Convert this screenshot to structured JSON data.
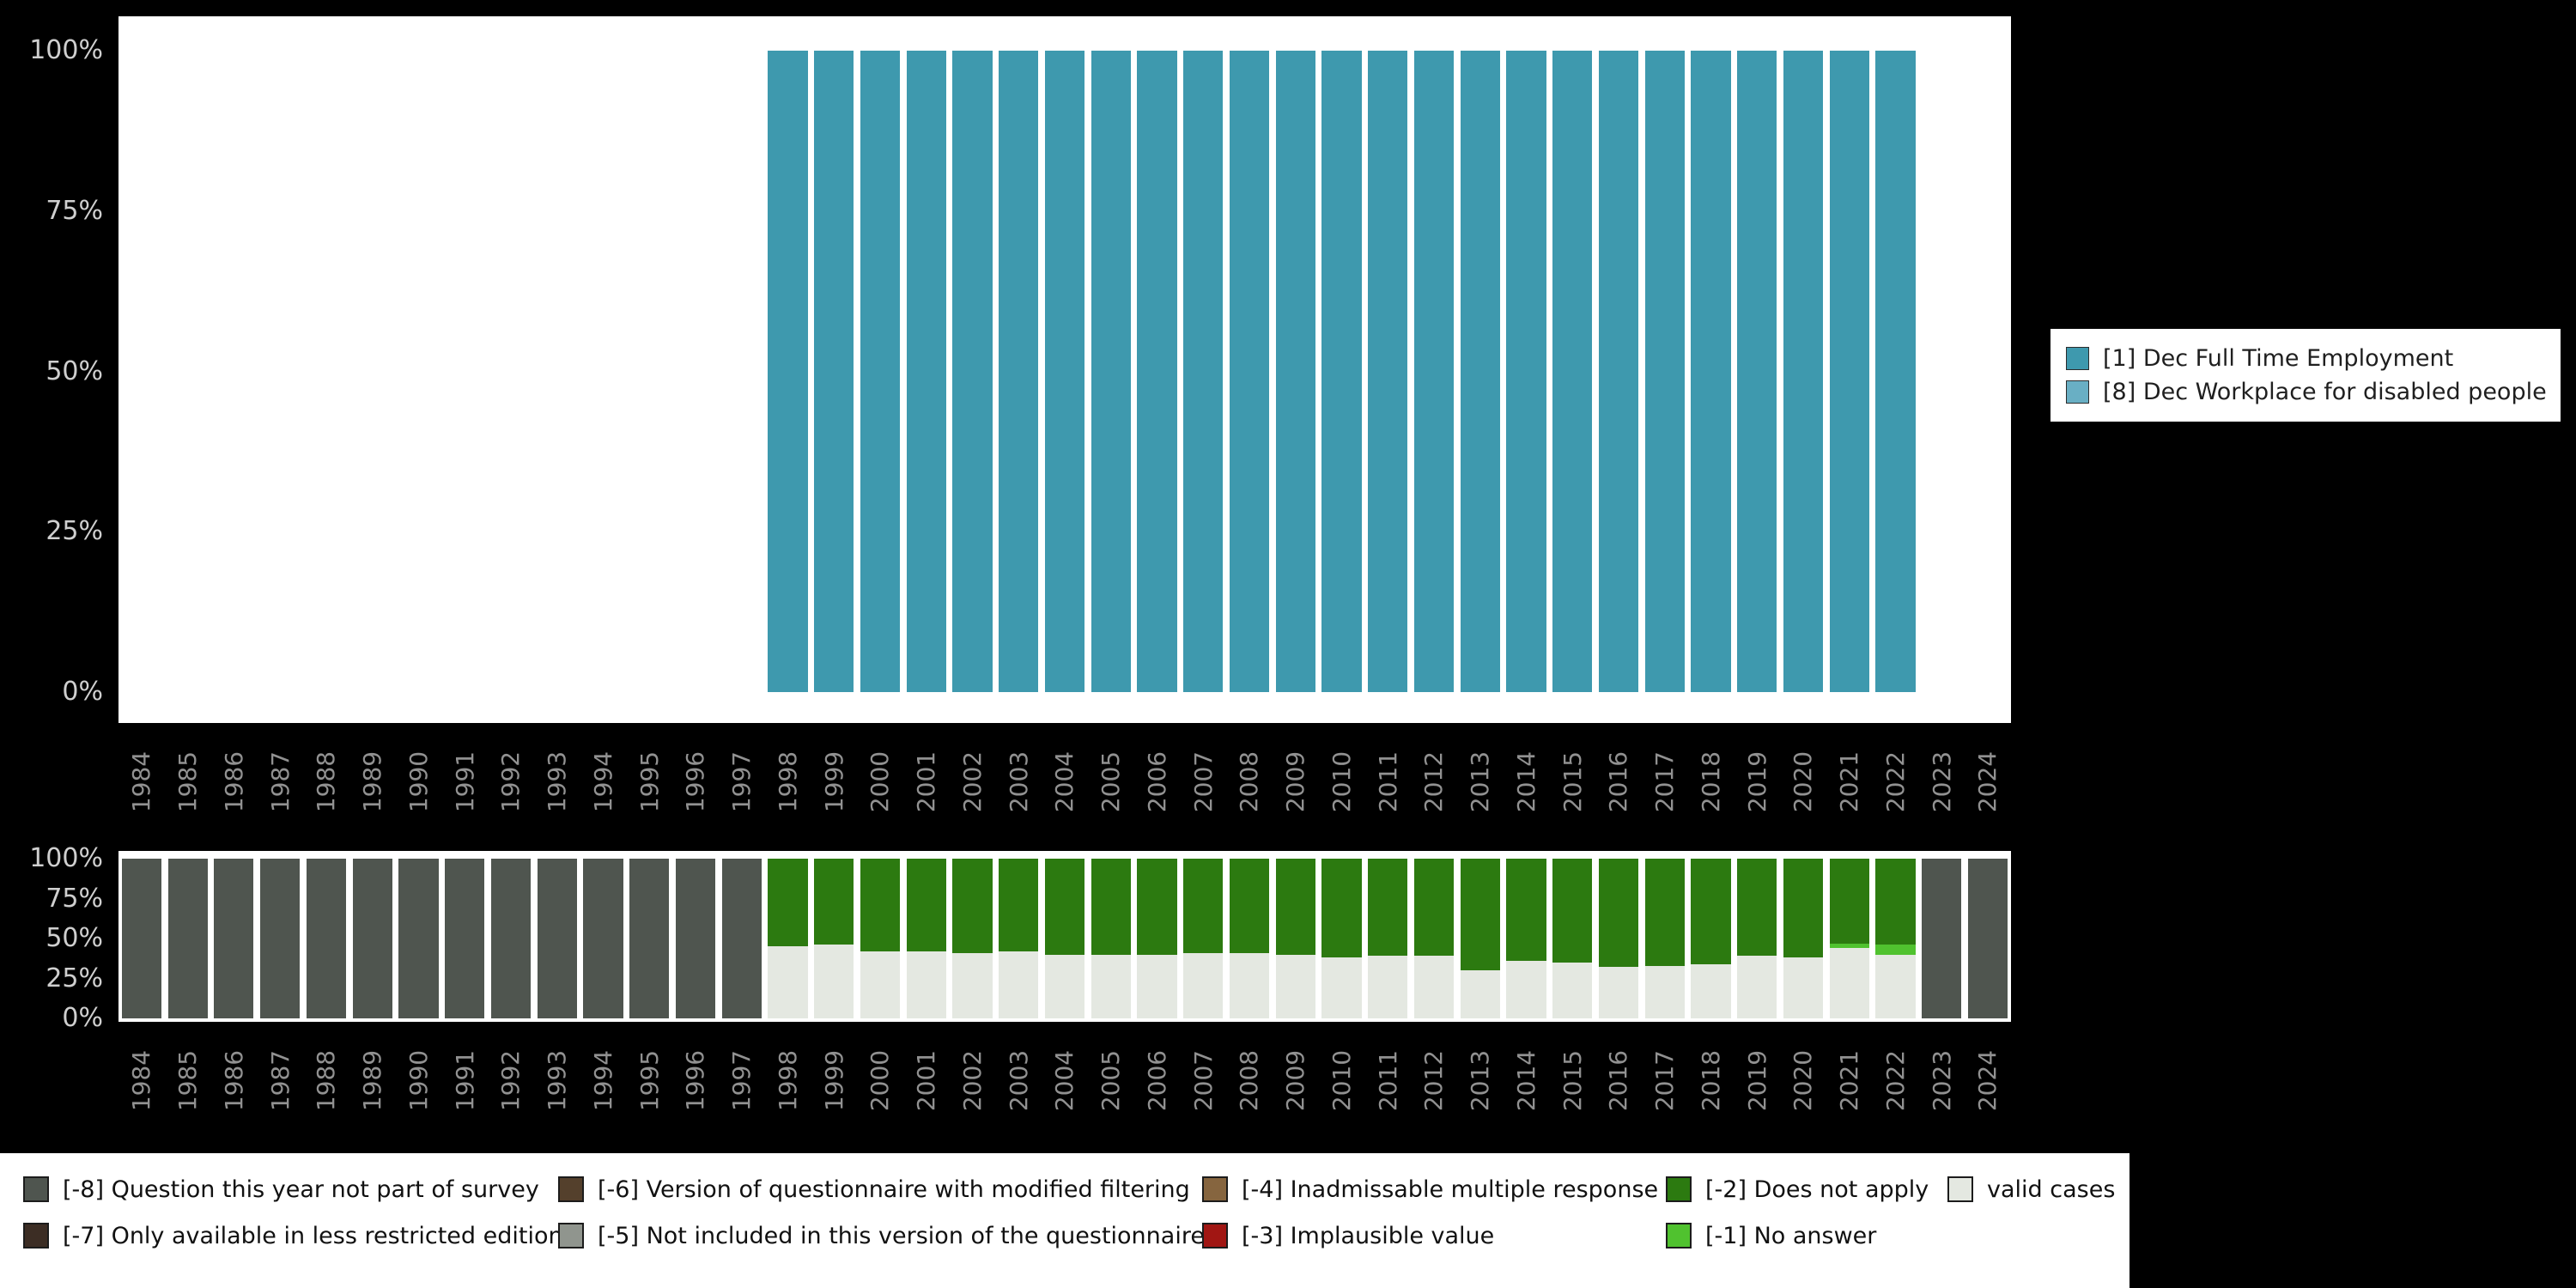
{
  "colors": {
    "bar_primary": "#3E99AE",
    "bar_secondary": "#69AFC4",
    "m8": "#4F554F",
    "m7": "#3C2D24",
    "m6": "#54402C",
    "m5": "#90958E",
    "m4": "#86653F",
    "m3": "#A11613",
    "m2": "#2C7A10",
    "m1": "#50C22F",
    "valid": "#E4E8E1"
  },
  "y_ticks": [
    "100%",
    "75%",
    "50%",
    "25%",
    "0%"
  ],
  "years": [
    1984,
    1985,
    1986,
    1987,
    1988,
    1989,
    1990,
    1991,
    1992,
    1993,
    1994,
    1995,
    1996,
    1997,
    1998,
    1999,
    2000,
    2001,
    2002,
    2003,
    2004,
    2005,
    2006,
    2007,
    2008,
    2009,
    2010,
    2011,
    2012,
    2013,
    2014,
    2015,
    2016,
    2017,
    2018,
    2019,
    2020,
    2021,
    2022,
    2023,
    2024
  ],
  "variables_legend": [
    {
      "label": "[1] Dec Full Time Employment",
      "color": "bar_primary"
    },
    {
      "label": "[8] Dec Workplace for disabled people",
      "color": "bar_secondary"
    }
  ],
  "missing_legend_columns": [
    [
      {
        "label": "[-8] Question this year not part of survey",
        "color": "m8"
      },
      {
        "label": "[-7] Only available in less restricted edition",
        "color": "m7"
      }
    ],
    [
      {
        "label": "[-6] Version of questionnaire with modified filtering",
        "color": "m6"
      },
      {
        "label": "[-5] Not included in this version of the questionnaire",
        "color": "m5"
      }
    ],
    [
      {
        "label": "[-4] Inadmissable multiple response",
        "color": "m4"
      },
      {
        "label": "[-3] Implausible value",
        "color": "m3"
      }
    ],
    [
      {
        "label": "[-2] Does not apply",
        "color": "m2"
      },
      {
        "label": "[-1] No answer",
        "color": "m1"
      }
    ],
    [
      {
        "label": "valid cases",
        "color": "valid"
      }
    ]
  ],
  "chart_data": [
    {
      "type": "bar",
      "title": "",
      "xlabel": "",
      "ylabel": "",
      "ylim": [
        0,
        100
      ],
      "yticks": [
        "0%",
        "25%",
        "50%",
        "75%",
        "100%"
      ],
      "legend_position": "right",
      "x": [
        1984,
        1985,
        1986,
        1987,
        1988,
        1989,
        1990,
        1991,
        1992,
        1993,
        1994,
        1995,
        1996,
        1997,
        1998,
        1999,
        2000,
        2001,
        2002,
        2003,
        2004,
        2005,
        2006,
        2007,
        2008,
        2009,
        2010,
        2011,
        2012,
        2013,
        2014,
        2015,
        2016,
        2017,
        2018,
        2019,
        2020,
        2021,
        2022,
        2023,
        2024
      ],
      "series": [
        {
          "name": "[1] Dec Full Time Employment",
          "color": "bar_primary",
          "values": [
            0,
            0,
            0,
            0,
            0,
            0,
            0,
            0,
            0,
            0,
            0,
            0,
            0,
            0,
            100,
            100,
            100,
            100,
            100,
            100,
            100,
            100,
            100,
            100,
            100,
            100,
            100,
            100,
            100,
            100,
            100,
            100,
            100,
            100,
            100,
            100,
            100,
            100,
            100,
            0,
            0
          ]
        }
      ]
    },
    {
      "type": "bar",
      "stacked": true,
      "title": "",
      "xlabel": "",
      "ylabel": "",
      "ylim": [
        0,
        100
      ],
      "yticks": [
        "0%",
        "25%",
        "50%",
        "75%",
        "100%"
      ],
      "legend_position": "bottom",
      "x": [
        1984,
        1985,
        1986,
        1987,
        1988,
        1989,
        1990,
        1991,
        1992,
        1993,
        1994,
        1995,
        1996,
        1997,
        1998,
        1999,
        2000,
        2001,
        2002,
        2003,
        2004,
        2005,
        2006,
        2007,
        2008,
        2009,
        2010,
        2011,
        2012,
        2013,
        2014,
        2015,
        2016,
        2017,
        2018,
        2019,
        2020,
        2021,
        2022,
        2023,
        2024
      ],
      "series": [
        {
          "name": "valid cases",
          "color": "valid",
          "values": [
            0,
            0,
            0,
            0,
            0,
            0,
            0,
            0,
            0,
            0,
            0,
            0,
            0,
            0,
            45,
            46,
            42,
            42,
            41,
            42,
            40,
            40,
            40,
            41,
            41,
            40,
            38,
            39,
            39,
            30,
            36,
            35,
            32,
            33,
            34,
            39,
            38,
            44,
            40,
            0,
            0
          ]
        },
        {
          "name": "[-1] No answer",
          "color": "m1",
          "values": [
            0,
            0,
            0,
            0,
            0,
            0,
            0,
            0,
            0,
            0,
            0,
            0,
            0,
            0,
            0,
            0,
            0,
            0,
            0,
            0,
            0,
            0,
            0,
            0,
            0,
            0,
            0,
            0,
            0,
            0,
            0,
            0,
            0,
            0,
            0,
            0,
            0,
            3,
            6,
            0,
            0
          ]
        },
        {
          "name": "[-2] Does not apply",
          "color": "m2",
          "values": [
            0,
            0,
            0,
            0,
            0,
            0,
            0,
            0,
            0,
            0,
            0,
            0,
            0,
            0,
            55,
            54,
            58,
            58,
            59,
            58,
            60,
            60,
            60,
            59,
            59,
            60,
            62,
            61,
            61,
            70,
            64,
            65,
            68,
            67,
            66,
            61,
            62,
            53,
            54,
            0,
            0
          ]
        },
        {
          "name": "[-8] Question this year not part of survey",
          "color": "m8",
          "values": [
            100,
            100,
            100,
            100,
            100,
            100,
            100,
            100,
            100,
            100,
            100,
            100,
            100,
            100,
            0,
            0,
            0,
            0,
            0,
            0,
            0,
            0,
            0,
            0,
            0,
            0,
            0,
            0,
            0,
            0,
            0,
            0,
            0,
            0,
            0,
            0,
            0,
            0,
            0,
            100,
            100
          ]
        }
      ]
    }
  ]
}
